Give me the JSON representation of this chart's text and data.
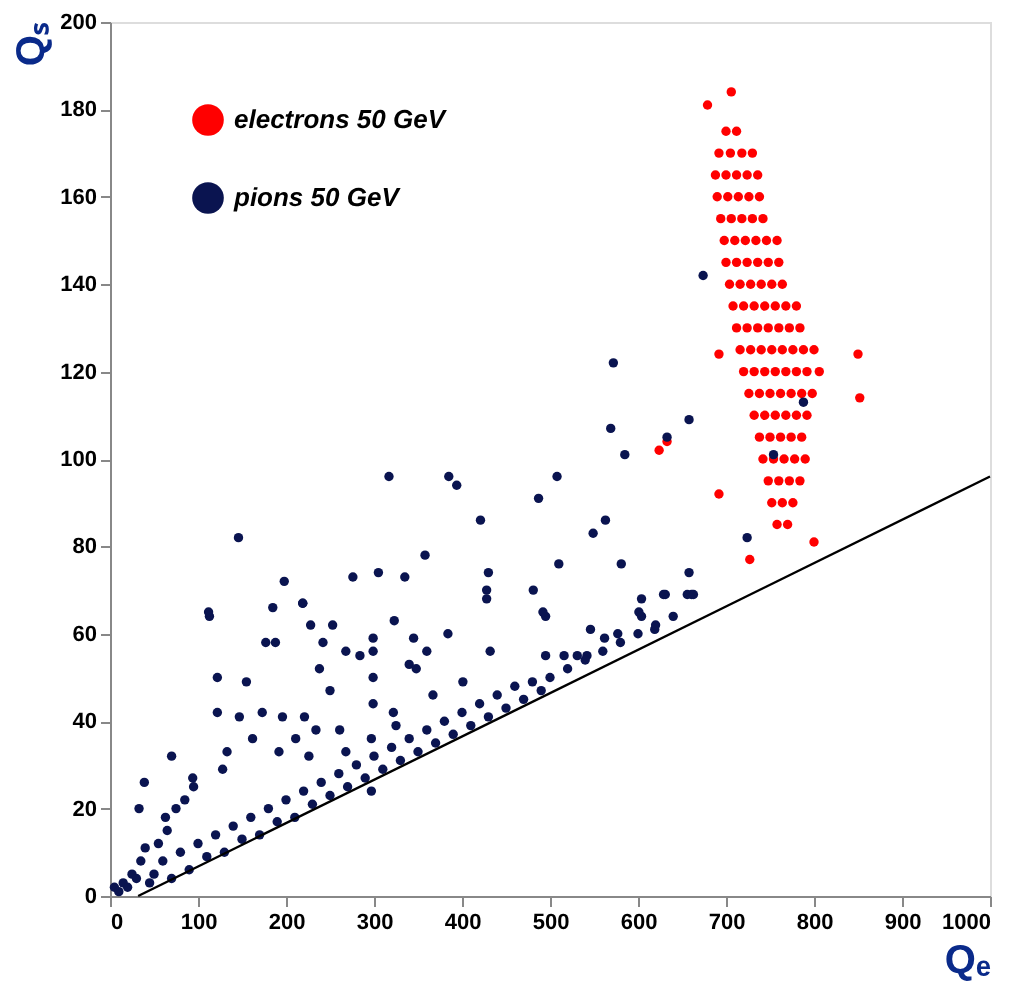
{
  "chart_data": {
    "type": "scatter",
    "xlabel": "Qₑ",
    "ylabel": "Qₛ",
    "xlim": [
      0,
      1000
    ],
    "ylim": [
      0,
      200
    ],
    "xticks": [
      0,
      100,
      200,
      300,
      400,
      500,
      600,
      700,
      800,
      900,
      1000
    ],
    "yticks": [
      0,
      20,
      40,
      60,
      80,
      100,
      120,
      140,
      160,
      180,
      200
    ],
    "grid": false,
    "legend": "top left",
    "marker": "circle",
    "series": [
      {
        "name": "electrons 50 GeV",
        "color": "#ff0000",
        "x": [
          700,
          712,
          692,
          705,
          718,
          730,
          688,
          700,
          712,
          724,
          736,
          690,
          702,
          714,
          726,
          738,
          694,
          706,
          718,
          730,
          742,
          698,
          710,
          722,
          734,
          746,
          758,
          700,
          712,
          724,
          736,
          748,
          760,
          704,
          716,
          728,
          740,
          752,
          764,
          708,
          720,
          732,
          744,
          756,
          768,
          780,
          712,
          724,
          736,
          748,
          760,
          772,
          784,
          716,
          728,
          740,
          752,
          764,
          776,
          788,
          800,
          720,
          732,
          744,
          756,
          768,
          780,
          792,
          806,
          726,
          738,
          750,
          762,
          774,
          786,
          798,
          732,
          744,
          756,
          768,
          780,
          792,
          738,
          750,
          762,
          774,
          786,
          742,
          754,
          766,
          778,
          790,
          748,
          760,
          772,
          784,
          752,
          764,
          776,
          758,
          770,
          679,
          706,
          624,
          633,
          692,
          692,
          727,
          800,
          850,
          852
        ],
        "values": [
          175,
          175,
          170,
          170,
          170,
          170,
          165,
          165,
          165,
          165,
          165,
          160,
          160,
          160,
          160,
          160,
          155,
          155,
          155,
          155,
          155,
          150,
          150,
          150,
          150,
          150,
          150,
          145,
          145,
          145,
          145,
          145,
          145,
          140,
          140,
          140,
          140,
          140,
          140,
          135,
          135,
          135,
          135,
          135,
          135,
          135,
          130,
          130,
          130,
          130,
          130,
          130,
          130,
          125,
          125,
          125,
          125,
          125,
          125,
          125,
          125,
          120,
          120,
          120,
          120,
          120,
          120,
          120,
          120,
          115,
          115,
          115,
          115,
          115,
          115,
          115,
          110,
          110,
          110,
          110,
          110,
          110,
          105,
          105,
          105,
          105,
          105,
          100,
          100,
          100,
          100,
          100,
          95,
          95,
          95,
          95,
          90,
          90,
          90,
          85,
          85,
          181,
          184,
          102,
          104,
          124,
          92,
          77,
          81,
          124,
          114
        ]
      },
      {
        "name": "pions  50 GeV",
        "color": "#0a1450",
        "x": [
          113,
          177,
          188,
          219,
          228,
          242,
          253,
          268,
          284,
          299,
          299,
          299,
          323,
          340,
          345,
          348,
          360,
          367,
          384,
          401,
          432,
          428,
          495,
          495,
          516,
          531,
          542,
          546,
          562,
          577,
          604,
          619,
          631,
          661,
          122,
          155,
          122,
          173,
          147,
          196,
          221,
          234,
          250,
          238,
          299,
          322,
          325,
          297,
          297,
          70,
          39,
          33,
          63,
          94,
          128,
          133,
          162,
          192,
          211,
          226,
          261,
          268,
          50,
          60,
          70,
          80,
          90,
          100,
          110,
          120,
          130,
          140,
          150,
          160,
          170,
          180,
          190,
          200,
          210,
          220,
          230,
          240,
          250,
          260,
          270,
          280,
          290,
          300,
          310,
          320,
          330,
          340,
          350,
          360,
          370,
          380,
          390,
          400,
          410,
          420,
          430,
          440,
          450,
          460,
          470,
          480,
          490,
          500,
          520,
          540,
          560,
          580,
          600,
          620,
          640,
          5,
          10,
          15,
          20,
          25,
          30,
          35,
          40,
          45,
          55,
          65,
          75,
          85,
          95,
          572,
          569,
          585,
          658,
          633,
          724,
          317,
          385,
          394,
          508,
          487,
          421,
          563,
          549,
          146,
          358,
          510,
          581,
          658,
          112,
          198,
          185,
          219,
          276,
          305,
          335,
          430,
          428,
          481,
          492,
          604,
          629,
          656,
          663,
          601,
          674,
          788,
          754
        ],
        "values": [
          64,
          58,
          58,
          67,
          62,
          58,
          62,
          56,
          55,
          59,
          56,
          50,
          63,
          53,
          59,
          52,
          56,
          46,
          60,
          49,
          56,
          68,
          55,
          64,
          55,
          55,
          55,
          61,
          59,
          60,
          64,
          61,
          69,
          69,
          50,
          49,
          42,
          42,
          41,
          41,
          41,
          38,
          47,
          52,
          44,
          42,
          39,
          36,
          24,
          32,
          26,
          20,
          18,
          27,
          29,
          33,
          36,
          33,
          36,
          32,
          38,
          33,
          5,
          8,
          4,
          10,
          6,
          12,
          9,
          14,
          10,
          16,
          13,
          18,
          14,
          20,
          17,
          22,
          18,
          24,
          21,
          26,
          23,
          28,
          25,
          30,
          27,
          32,
          29,
          34,
          31,
          36,
          33,
          38,
          35,
          40,
          37,
          42,
          39,
          44,
          41,
          46,
          43,
          48,
          45,
          49,
          47,
          50,
          52,
          54,
          56,
          58,
          60,
          62,
          64,
          2,
          1,
          3,
          2,
          5,
          4,
          8,
          11,
          3,
          12,
          15,
          20,
          22,
          25,
          122,
          107,
          101,
          109,
          105,
          82,
          96,
          96,
          94,
          96,
          91,
          86,
          86,
          83,
          82,
          78,
          76,
          76,
          74,
          65,
          72,
          66,
          67,
          73,
          74,
          73,
          74,
          70,
          70,
          65,
          68,
          69,
          69,
          69,
          65,
          142,
          113,
          101
        ]
      },
      {
        "type": "line",
        "marker": "none",
        "color": "#000000",
        "x": [
          32,
          1000
        ],
        "values": [
          0,
          96
        ]
      }
    ]
  }
}
